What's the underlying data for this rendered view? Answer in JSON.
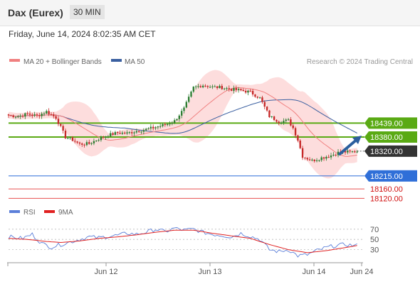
{
  "header": {
    "instrument": "Dax (Eurex)",
    "timeframe": "30 MIN",
    "datetime": "Friday, June 14, 2024 8:02:35 AM CET"
  },
  "legend": {
    "ma20_label": "MA 20 + Bollinger Bands",
    "ma50_label": "MA 50",
    "source": "Research © 2024 Trading Central",
    "rsi_label": "RSI",
    "ma9_label": "9MA"
  },
  "colors": {
    "candle_up": "#2e7d32",
    "candle_down": "#c62828",
    "bollinger_fill": "#fcd4d4",
    "ma20": "#f08080",
    "ma50": "#3a5fa0",
    "green_level": "#5aaa14",
    "blue_level": "#2f6fd8",
    "red_level": "#e85050",
    "arrow": "#2c5f9e",
    "rsi": "#5b7fd9",
    "rsi_ma": "#e02020"
  },
  "chart_data": {
    "type": "candlestick",
    "x_labels": [
      "Jun 12",
      "Jun 13",
      "Jun 14",
      "Jun 24"
    ],
    "price_range": [
      18100,
      18660
    ],
    "price_path": [
      [
        0,
        18472
      ],
      [
        4,
        18468
      ],
      [
        8,
        18478
      ],
      [
        12,
        18470
      ],
      [
        16,
        18488
      ],
      [
        20,
        18462
      ],
      [
        24,
        18380
      ],
      [
        27,
        18368
      ],
      [
        30,
        18350
      ],
      [
        34,
        18352
      ],
      [
        38,
        18372
      ],
      [
        42,
        18388
      ],
      [
        46,
        18398
      ],
      [
        50,
        18396
      ],
      [
        54,
        18406
      ],
      [
        58,
        18412
      ],
      [
        62,
        18422
      ],
      [
        66,
        18432
      ],
      [
        70,
        18448
      ],
      [
        74,
        18500
      ],
      [
        78,
        18590
      ],
      [
        82,
        18600
      ],
      [
        86,
        18592
      ],
      [
        90,
        18590
      ],
      [
        94,
        18582
      ],
      [
        98,
        18578
      ],
      [
        102,
        18570
      ],
      [
        106,
        18545
      ],
      [
        110,
        18468
      ],
      [
        114,
        18446
      ],
      [
        118,
        18450
      ],
      [
        120,
        18418
      ],
      [
        122,
        18368
      ],
      [
        124,
        18298
      ],
      [
        128,
        18280
      ],
      [
        132,
        18292
      ],
      [
        136,
        18302
      ],
      [
        140,
        18318
      ],
      [
        144,
        18316
      ],
      [
        147,
        18320
      ]
    ],
    "levels": [
      {
        "price": 18439.0,
        "label": "18439.00",
        "kind": "resistance"
      },
      {
        "price": 18380.0,
        "label": "18380.00",
        "kind": "resistance"
      },
      {
        "price": 18320.0,
        "label": "18320.00",
        "kind": "last"
      },
      {
        "price": 18215.0,
        "label": "18215.00",
        "kind": "pivot"
      },
      {
        "price": 18160.0,
        "label": "18160.00",
        "kind": "support"
      },
      {
        "price": 18120.0,
        "label": "18120.00",
        "kind": "support"
      }
    ],
    "rsi": {
      "ticks": [
        70,
        50,
        30
      ],
      "range": [
        10,
        85
      ],
      "rsi_path": [
        [
          0,
          55
        ],
        [
          6,
          52
        ],
        [
          10,
          60
        ],
        [
          14,
          42
        ],
        [
          18,
          35
        ],
        [
          22,
          40
        ],
        [
          26,
          45
        ],
        [
          30,
          50
        ],
        [
          34,
          55
        ],
        [
          38,
          53
        ],
        [
          42,
          56
        ],
        [
          46,
          58
        ],
        [
          50,
          62
        ],
        [
          54,
          60
        ],
        [
          58,
          64
        ],
        [
          62,
          70
        ],
        [
          66,
          65
        ],
        [
          70,
          72
        ],
        [
          74,
          68
        ],
        [
          78,
          70
        ],
        [
          82,
          64
        ],
        [
          86,
          60
        ],
        [
          90,
          58
        ],
        [
          94,
          55
        ],
        [
          98,
          62
        ],
        [
          102,
          56
        ],
        [
          106,
          50
        ],
        [
          110,
          30
        ],
        [
          114,
          26
        ],
        [
          118,
          30
        ],
        [
          122,
          18
        ],
        [
          126,
          20
        ],
        [
          130,
          28
        ],
        [
          134,
          34
        ],
        [
          138,
          38
        ],
        [
          142,
          40
        ],
        [
          146,
          38
        ],
        [
          147,
          38
        ]
      ],
      "ma_path": [
        [
          0,
          52
        ],
        [
          8,
          50
        ],
        [
          16,
          46
        ],
        [
          22,
          44
        ],
        [
          30,
          47
        ],
        [
          38,
          52
        ],
        [
          46,
          55
        ],
        [
          54,
          59
        ],
        [
          62,
          64
        ],
        [
          70,
          68
        ],
        [
          78,
          68
        ],
        [
          86,
          62
        ],
        [
          94,
          57
        ],
        [
          102,
          52
        ],
        [
          110,
          40
        ],
        [
          118,
          30
        ],
        [
          126,
          24
        ],
        [
          134,
          28
        ],
        [
          142,
          34
        ],
        [
          147,
          38
        ]
      ]
    }
  }
}
